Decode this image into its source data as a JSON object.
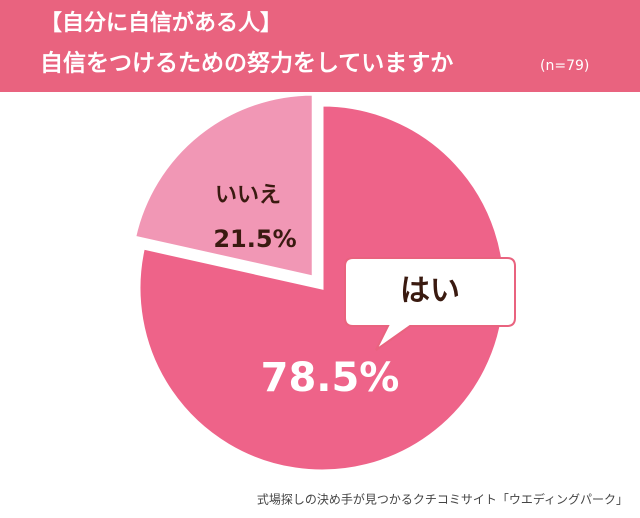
{
  "chart_data": {
    "type": "pie",
    "title": "【自分に自信がある人】",
    "subtitle": "自信をつけるための努力をしていますか",
    "sample_size": "(n=79)",
    "source": "式場探しの決め手が見つかるクチコミサイト「ウエディングパーク」",
    "categories": [
      "はい",
      "いいえ"
    ],
    "values": [
      78.5,
      21.5
    ],
    "value_labels": [
      "78.5%",
      "21.5%"
    ],
    "colors": [
      "#ee6389",
      "#f197b5"
    ]
  }
}
